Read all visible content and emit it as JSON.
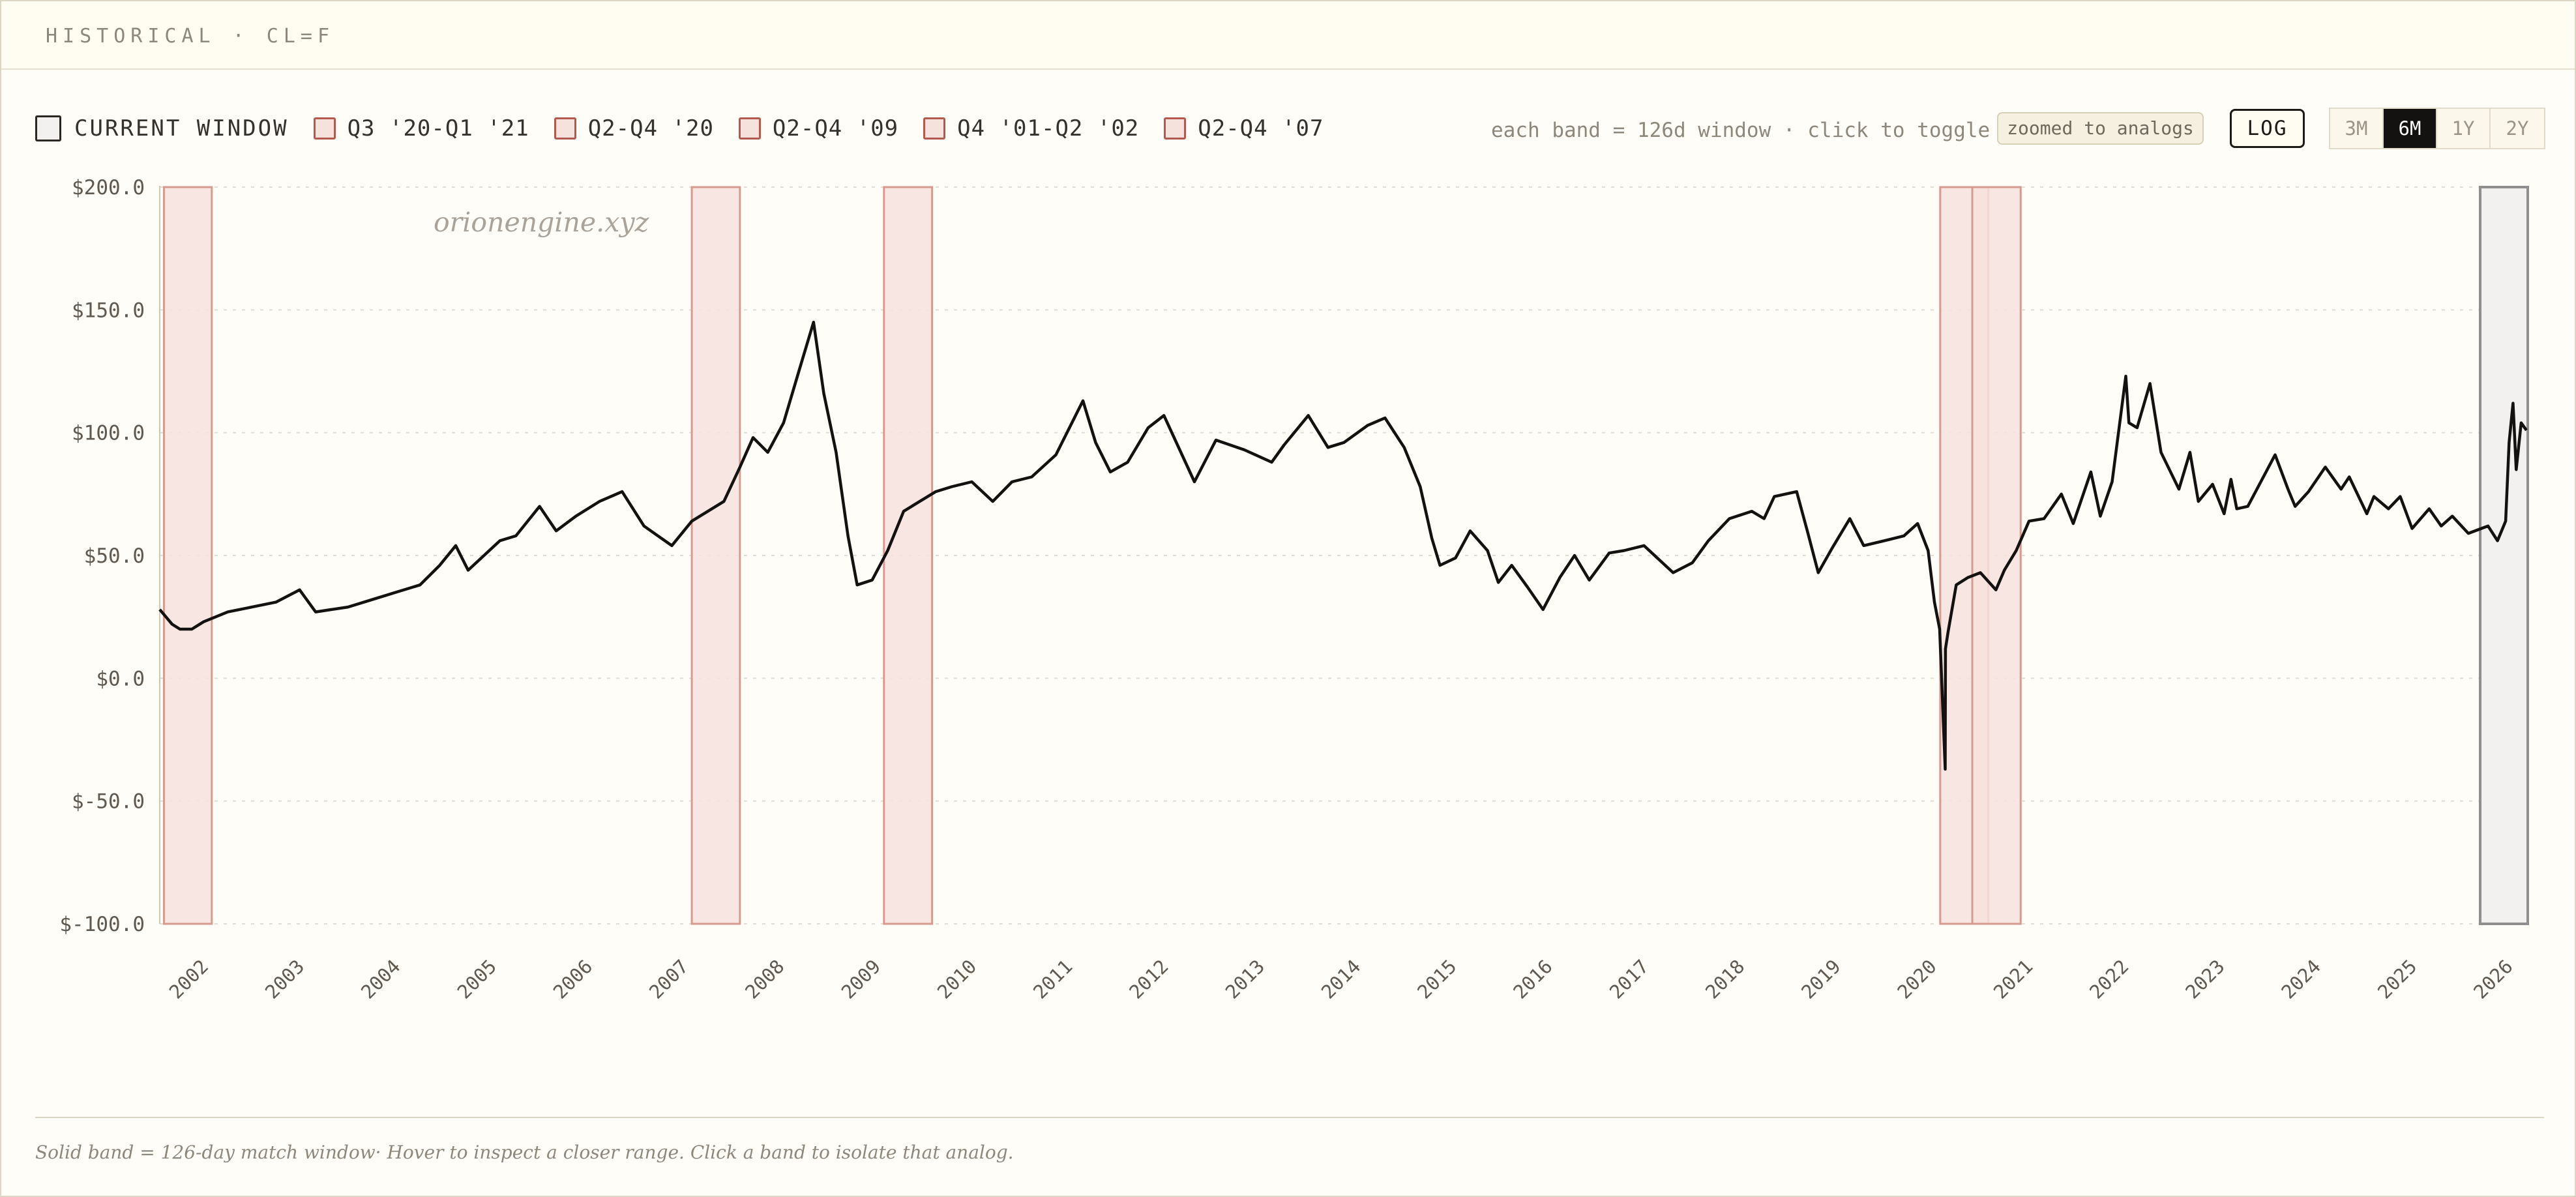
{
  "header": {
    "title": "HISTORICAL · CL=F"
  },
  "legend": [
    {
      "label": "CURRENT WINDOW",
      "kind": "current"
    },
    {
      "label": "Q3 '20-Q1 '21",
      "kind": "analog"
    },
    {
      "label": "Q2-Q4 '20",
      "kind": "analog"
    },
    {
      "label": "Q2-Q4 '09",
      "kind": "analog"
    },
    {
      "label": "Q4 '01-Q2 '02",
      "kind": "analog"
    },
    {
      "label": "Q2-Q4 '07",
      "kind": "analog"
    }
  ],
  "controls": {
    "hint": "each band = 126d window · click to toggle",
    "zoom_pill": "zoomed to analogs",
    "log_button": "LOG",
    "ranges": [
      {
        "label": "3M",
        "active": false
      },
      {
        "label": "6M",
        "active": true
      },
      {
        "label": "1Y",
        "active": false
      },
      {
        "label": "2Y",
        "active": false
      }
    ]
  },
  "watermark": "orionengine.xyz",
  "caption": "Solid band = 126-day match window· Hover to inspect a closer range. Click a band to isolate that analog.",
  "colors": {
    "analog_band_fill": "#f6e2dd",
    "analog_band_stroke": "#d79a90",
    "current_band_fill": "#f2f1f0",
    "current_band_stroke": "#8f8f8f",
    "line": "#141210",
    "grid": "#e2ddd2"
  },
  "chart_data": {
    "type": "line",
    "title": "",
    "xlabel": "",
    "ylabel": "",
    "ylim": [
      -100,
      200
    ],
    "y_ticks": [
      200,
      150,
      100,
      50,
      0,
      -50,
      -100
    ],
    "y_tick_labels": [
      "$200.0",
      "$150.0",
      "$100.0",
      "$50.0",
      "$0.0",
      "$-50.0",
      "$-100.0"
    ],
    "x_tick_labels": [
      "2002",
      "2003",
      "2004",
      "2005",
      "2006",
      "2007",
      "2008",
      "2009",
      "2010",
      "2011",
      "2012",
      "2013",
      "2014",
      "2015",
      "2016",
      "2017",
      "2018",
      "2019",
      "2020",
      "2021",
      "2022",
      "2023",
      "2024",
      "2025",
      "2026"
    ],
    "x_range": [
      "2001-09-15",
      "2026-05-15"
    ],
    "grid": true,
    "bands": [
      {
        "start": "2001-10-01",
        "end": "2002-04-01",
        "kind": "analog"
      },
      {
        "start": "2007-04-01",
        "end": "2007-10-01",
        "kind": "analog"
      },
      {
        "start": "2009-04-01",
        "end": "2009-10-01",
        "kind": "analog"
      },
      {
        "start": "2020-04-01",
        "end": "2020-10-01",
        "kind": "analog"
      },
      {
        "start": "2020-08-01",
        "end": "2021-02-01",
        "kind": "analog"
      },
      {
        "start": "2025-11-15",
        "end": "2026-05-15",
        "kind": "current"
      }
    ],
    "series": [
      {
        "x": [
          "2001-09-15",
          "2001-11-01",
          "2001-12-01",
          "2002-01-15",
          "2002-03-01",
          "2002-06-01",
          "2002-09-01",
          "2002-12-01",
          "2003-03-01",
          "2003-05-01",
          "2003-09-01",
          "2003-12-01",
          "2004-03-01",
          "2004-06-01",
          "2004-08-15",
          "2004-10-15",
          "2004-12-01",
          "2005-04-01",
          "2005-06-01",
          "2005-08-30",
          "2005-11-01",
          "2006-01-15",
          "2006-04-15",
          "2006-07-10",
          "2006-10-01",
          "2007-01-15",
          "2007-04-01",
          "2007-06-01",
          "2007-08-01",
          "2007-10-01",
          "2007-11-20",
          "2008-01-15",
          "2008-03-15",
          "2008-05-15",
          "2008-07-07",
          "2008-08-15",
          "2008-10-01",
          "2008-11-15",
          "2008-12-20",
          "2009-02-15",
          "2009-04-15",
          "2009-06-15",
          "2009-08-15",
          "2009-10-15",
          "2009-12-15",
          "2010-03-01",
          "2010-05-20",
          "2010-08-01",
          "2010-10-15",
          "2011-01-15",
          "2011-04-28",
          "2011-06-15",
          "2011-08-10",
          "2011-10-15",
          "2012-01-01",
          "2012-03-01",
          "2012-06-25",
          "2012-09-15",
          "2013-01-01",
          "2013-04-15",
          "2013-06-01",
          "2013-09-01",
          "2013-11-15",
          "2014-01-15",
          "2014-04-15",
          "2014-06-20",
          "2014-09-01",
          "2014-11-01",
          "2014-12-15",
          "2015-01-15",
          "2015-03-15",
          "2015-05-10",
          "2015-07-15",
          "2015-08-25",
          "2015-10-15",
          "2015-12-15",
          "2016-02-11",
          "2016-04-15",
          "2016-06-10",
          "2016-08-05",
          "2016-10-20",
          "2016-12-15",
          "2017-03-01",
          "2017-06-20",
          "2017-09-01",
          "2017-11-01",
          "2018-01-20",
          "2018-04-15",
          "2018-06-01",
          "2018-07-10",
          "2018-10-03",
          "2018-11-15",
          "2018-12-24",
          "2019-02-15",
          "2019-04-23",
          "2019-06-15",
          "2019-09-01",
          "2019-11-15",
          "2020-01-06",
          "2020-02-15",
          "2020-03-10",
          "2020-03-30",
          "2020-04-20",
          "2020-04-21",
          "2020-05-01",
          "2020-06-01",
          "2020-07-15",
          "2020-09-01",
          "2020-10-30",
          "2020-12-01",
          "2021-01-15",
          "2021-03-05",
          "2021-05-01",
          "2021-07-06",
          "2021-08-20",
          "2021-10-26",
          "2021-12-01",
          "2022-01-15",
          "2022-03-08",
          "2022-03-20",
          "2022-04-20",
          "2022-06-08",
          "2022-07-20",
          "2022-09-26",
          "2022-11-07",
          "2022-12-09",
          "2023-02-01",
          "2023-03-17",
          "2023-04-12",
          "2023-05-04",
          "2023-06-15",
          "2023-09-27",
          "2023-11-15",
          "2023-12-12",
          "2024-02-01",
          "2024-04-05",
          "2024-06-04",
          "2024-07-05",
          "2024-09-10",
          "2024-10-07",
          "2024-12-01",
          "2025-01-15",
          "2025-03-01",
          "2025-05-05",
          "2025-06-20",
          "2025-08-01",
          "2025-10-01",
          "2025-12-15",
          "2026-01-20",
          "2026-02-20",
          "2026-03-05",
          "2026-03-20",
          "2026-04-01",
          "2026-04-20",
          "2026-05-10"
        ],
        "y": [
          28,
          22,
          20,
          20,
          23,
          27,
          29,
          31,
          36,
          27,
          29,
          32,
          35,
          38,
          46,
          54,
          44,
          56,
          58,
          70,
          60,
          66,
          72,
          76,
          62,
          54,
          64,
          68,
          72,
          86,
          98,
          92,
          104,
          126,
          145,
          116,
          92,
          58,
          38,
          40,
          52,
          68,
          72,
          76,
          78,
          80,
          72,
          80,
          82,
          91,
          113,
          96,
          84,
          88,
          102,
          107,
          80,
          97,
          93,
          88,
          95,
          107,
          94,
          96,
          103,
          106,
          94,
          78,
          57,
          46,
          49,
          60,
          52,
          39,
          46,
          37,
          28,
          41,
          50,
          40,
          51,
          52,
          54,
          43,
          47,
          56,
          65,
          68,
          65,
          74,
          76,
          59,
          43,
          53,
          65,
          54,
          56,
          58,
          63,
          52,
          31,
          20,
          -37,
          12,
          19,
          38,
          41,
          43,
          36,
          44,
          52,
          64,
          65,
          75,
          63,
          84,
          66,
          80,
          123,
          104,
          102,
          120,
          92,
          77,
          92,
          72,
          79,
          67,
          81,
          69,
          70,
          91,
          77,
          70,
          76,
          86,
          77,
          82,
          67,
          74,
          69,
          74,
          61,
          69,
          62,
          66,
          59,
          62,
          56,
          64,
          96,
          112,
          85,
          104,
          101
        ]
      }
    ]
  }
}
